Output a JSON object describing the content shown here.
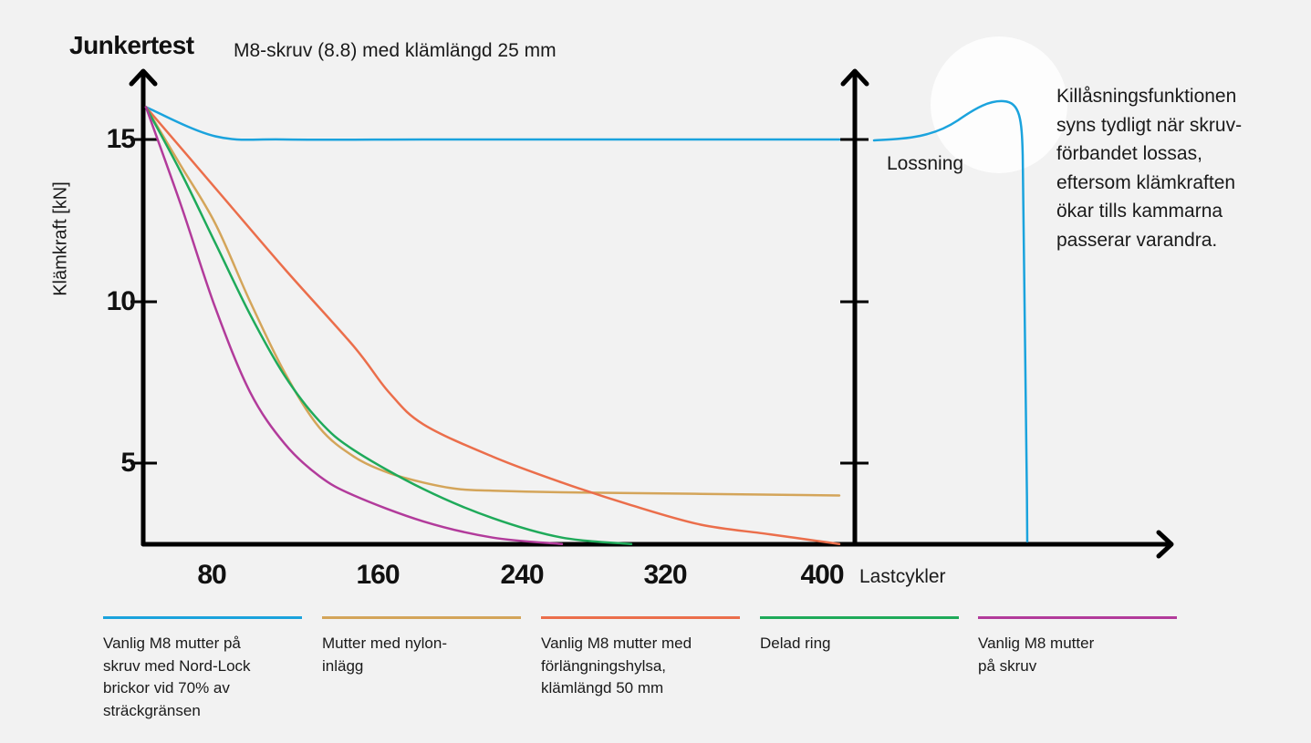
{
  "chart_data": {
    "type": "line",
    "title": "Junkertest",
    "subtitle": "M8-skruv (8.8) med klämlängd 25 mm",
    "ylabel": "Klämkraft [kN]",
    "xlabel": "Lastcykler",
    "y_ticks": [
      "5",
      "10",
      "15"
    ],
    "x_ticks": [
      "80",
      "160",
      "240",
      "320",
      "400"
    ],
    "series": [
      {
        "name": "Vanlig M8 mutter på skruv med Nord-Lock brickor vid 70% av sträckgränsen",
        "color": "#1ba3dd",
        "points": [
          [
            0,
            16.0
          ],
          [
            40,
            15.1
          ],
          [
            80,
            15.0
          ],
          [
            160,
            15.0
          ],
          [
            240,
            15.0
          ],
          [
            320,
            15.0
          ],
          [
            400,
            15.0
          ]
        ]
      },
      {
        "name": "Mutter med nylon-inlägg",
        "color": "#d4a55a",
        "points": [
          [
            0,
            16.0
          ],
          [
            20,
            14.2
          ],
          [
            40,
            12.4
          ],
          [
            60,
            10.0
          ],
          [
            80,
            7.8
          ],
          [
            100,
            6.1
          ],
          [
            120,
            5.2
          ],
          [
            140,
            4.7
          ],
          [
            160,
            4.4
          ],
          [
            180,
            4.2
          ],
          [
            200,
            4.15
          ],
          [
            240,
            4.1
          ],
          [
            320,
            4.05
          ],
          [
            400,
            4.0
          ]
        ]
      },
      {
        "name": "Vanlig M8 mutter med förlängningshylsa, klämlängd 50 mm",
        "color": "#eb6e4b",
        "points": [
          [
            0,
            16.0
          ],
          [
            40,
            13.5
          ],
          [
            80,
            11.0
          ],
          [
            120,
            8.6
          ],
          [
            140,
            7.2
          ],
          [
            160,
            6.2
          ],
          [
            200,
            5.2
          ],
          [
            240,
            4.4
          ],
          [
            280,
            3.7
          ],
          [
            320,
            3.1
          ],
          [
            360,
            2.8
          ],
          [
            400,
            2.5
          ]
        ]
      },
      {
        "name": "Delad ring",
        "color": "#1faa5a",
        "points": [
          [
            0,
            16.0
          ],
          [
            20,
            14.0
          ],
          [
            40,
            11.8
          ],
          [
            60,
            9.6
          ],
          [
            80,
            7.7
          ],
          [
            100,
            6.3
          ],
          [
            120,
            5.4
          ],
          [
            160,
            4.2
          ],
          [
            200,
            3.3
          ],
          [
            240,
            2.7
          ],
          [
            280,
            2.5
          ]
        ]
      },
      {
        "name": "Vanlig M8 mutter på skruv",
        "color": "#b23b9b",
        "points": [
          [
            0,
            16.0
          ],
          [
            20,
            13.0
          ],
          [
            40,
            9.8
          ],
          [
            60,
            7.2
          ],
          [
            80,
            5.6
          ],
          [
            100,
            4.6
          ],
          [
            120,
            4.0
          ],
          [
            160,
            3.2
          ],
          [
            200,
            2.7
          ],
          [
            240,
            2.5
          ]
        ]
      }
    ]
  },
  "loosening": {
    "label": "Lossning",
    "annotation_lines": [
      "Killåsningsfunktionen",
      "syns tydligt när skruv-",
      "förbandet lossas,",
      "eftersom klämkraften",
      "ökar tills kammarna",
      "passerar varandra."
    ]
  },
  "legend": [
    {
      "color": "#1ba3dd",
      "lines": [
        "Vanlig M8 mutter på",
        "skruv med Nord-Lock",
        "brickor vid 70% av",
        "sträckgränsen"
      ]
    },
    {
      "color": "#d4a55a",
      "lines": [
        "Mutter med nylon-",
        "inlägg"
      ]
    },
    {
      "color": "#eb6e4b",
      "lines": [
        "Vanlig M8 mutter med",
        "förlängningshylsa,",
        "klämlängd 50 mm"
      ]
    },
    {
      "color": "#1faa5a",
      "lines": [
        "Delad ring"
      ]
    },
    {
      "color": "#b23b9b",
      "lines": [
        "Vanlig M8 mutter",
        "på skruv"
      ]
    }
  ]
}
